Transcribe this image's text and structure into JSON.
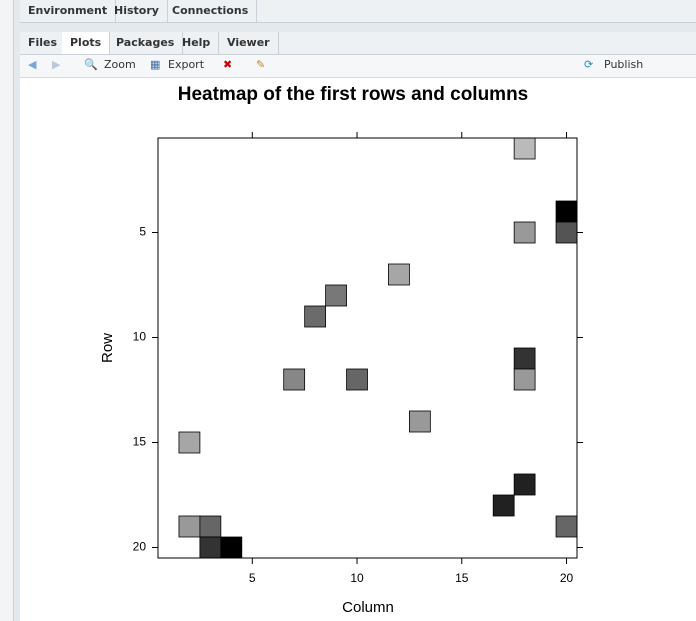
{
  "ui": {
    "top_tabs": [
      "Environment",
      "History",
      "Connections"
    ],
    "pane_tabs": [
      "Files",
      "Plots",
      "Packages",
      "Help",
      "Viewer"
    ],
    "toolbar": {
      "zoom": "Zoom",
      "export": "Export",
      "publish": "Publish"
    }
  },
  "chart_data": {
    "type": "heatmap",
    "title": "Heatmap of the first rows and columns",
    "x_label": "Column",
    "y_label": "Row",
    "xlim": [
      0.5,
      20.5
    ],
    "xticks": [
      5,
      10,
      15,
      20
    ],
    "ylim": [
      0.5,
      20.5
    ],
    "yticks": [
      5,
      10,
      15,
      20
    ],
    "y_reversed": true,
    "colors": [
      "#ffffff",
      "#000000"
    ],
    "cells": [
      {
        "x": 18,
        "y": 1,
        "value": 0.27
      },
      {
        "x": 20,
        "y": 4,
        "value": 1.0
      },
      {
        "x": 18,
        "y": 5,
        "value": 0.4
      },
      {
        "x": 20,
        "y": 5,
        "value": 0.67
      },
      {
        "x": 12,
        "y": 7,
        "value": 0.35
      },
      {
        "x": 9,
        "y": 8,
        "value": 0.53
      },
      {
        "x": 8,
        "y": 9,
        "value": 0.58
      },
      {
        "x": 18,
        "y": 11,
        "value": 0.8
      },
      {
        "x": 7,
        "y": 12,
        "value": 0.47
      },
      {
        "x": 10,
        "y": 12,
        "value": 0.6
      },
      {
        "x": 18,
        "y": 12,
        "value": 0.4
      },
      {
        "x": 13,
        "y": 14,
        "value": 0.4
      },
      {
        "x": 2,
        "y": 15,
        "value": 0.35
      },
      {
        "x": 18,
        "y": 17,
        "value": 0.87
      },
      {
        "x": 17,
        "y": 18,
        "value": 0.87
      },
      {
        "x": 2,
        "y": 19,
        "value": 0.4
      },
      {
        "x": 3,
        "y": 19,
        "value": 0.6
      },
      {
        "x": 20,
        "y": 19,
        "value": 0.6
      },
      {
        "x": 3,
        "y": 20,
        "value": 0.8
      },
      {
        "x": 4,
        "y": 20,
        "value": 1.0
      }
    ]
  }
}
